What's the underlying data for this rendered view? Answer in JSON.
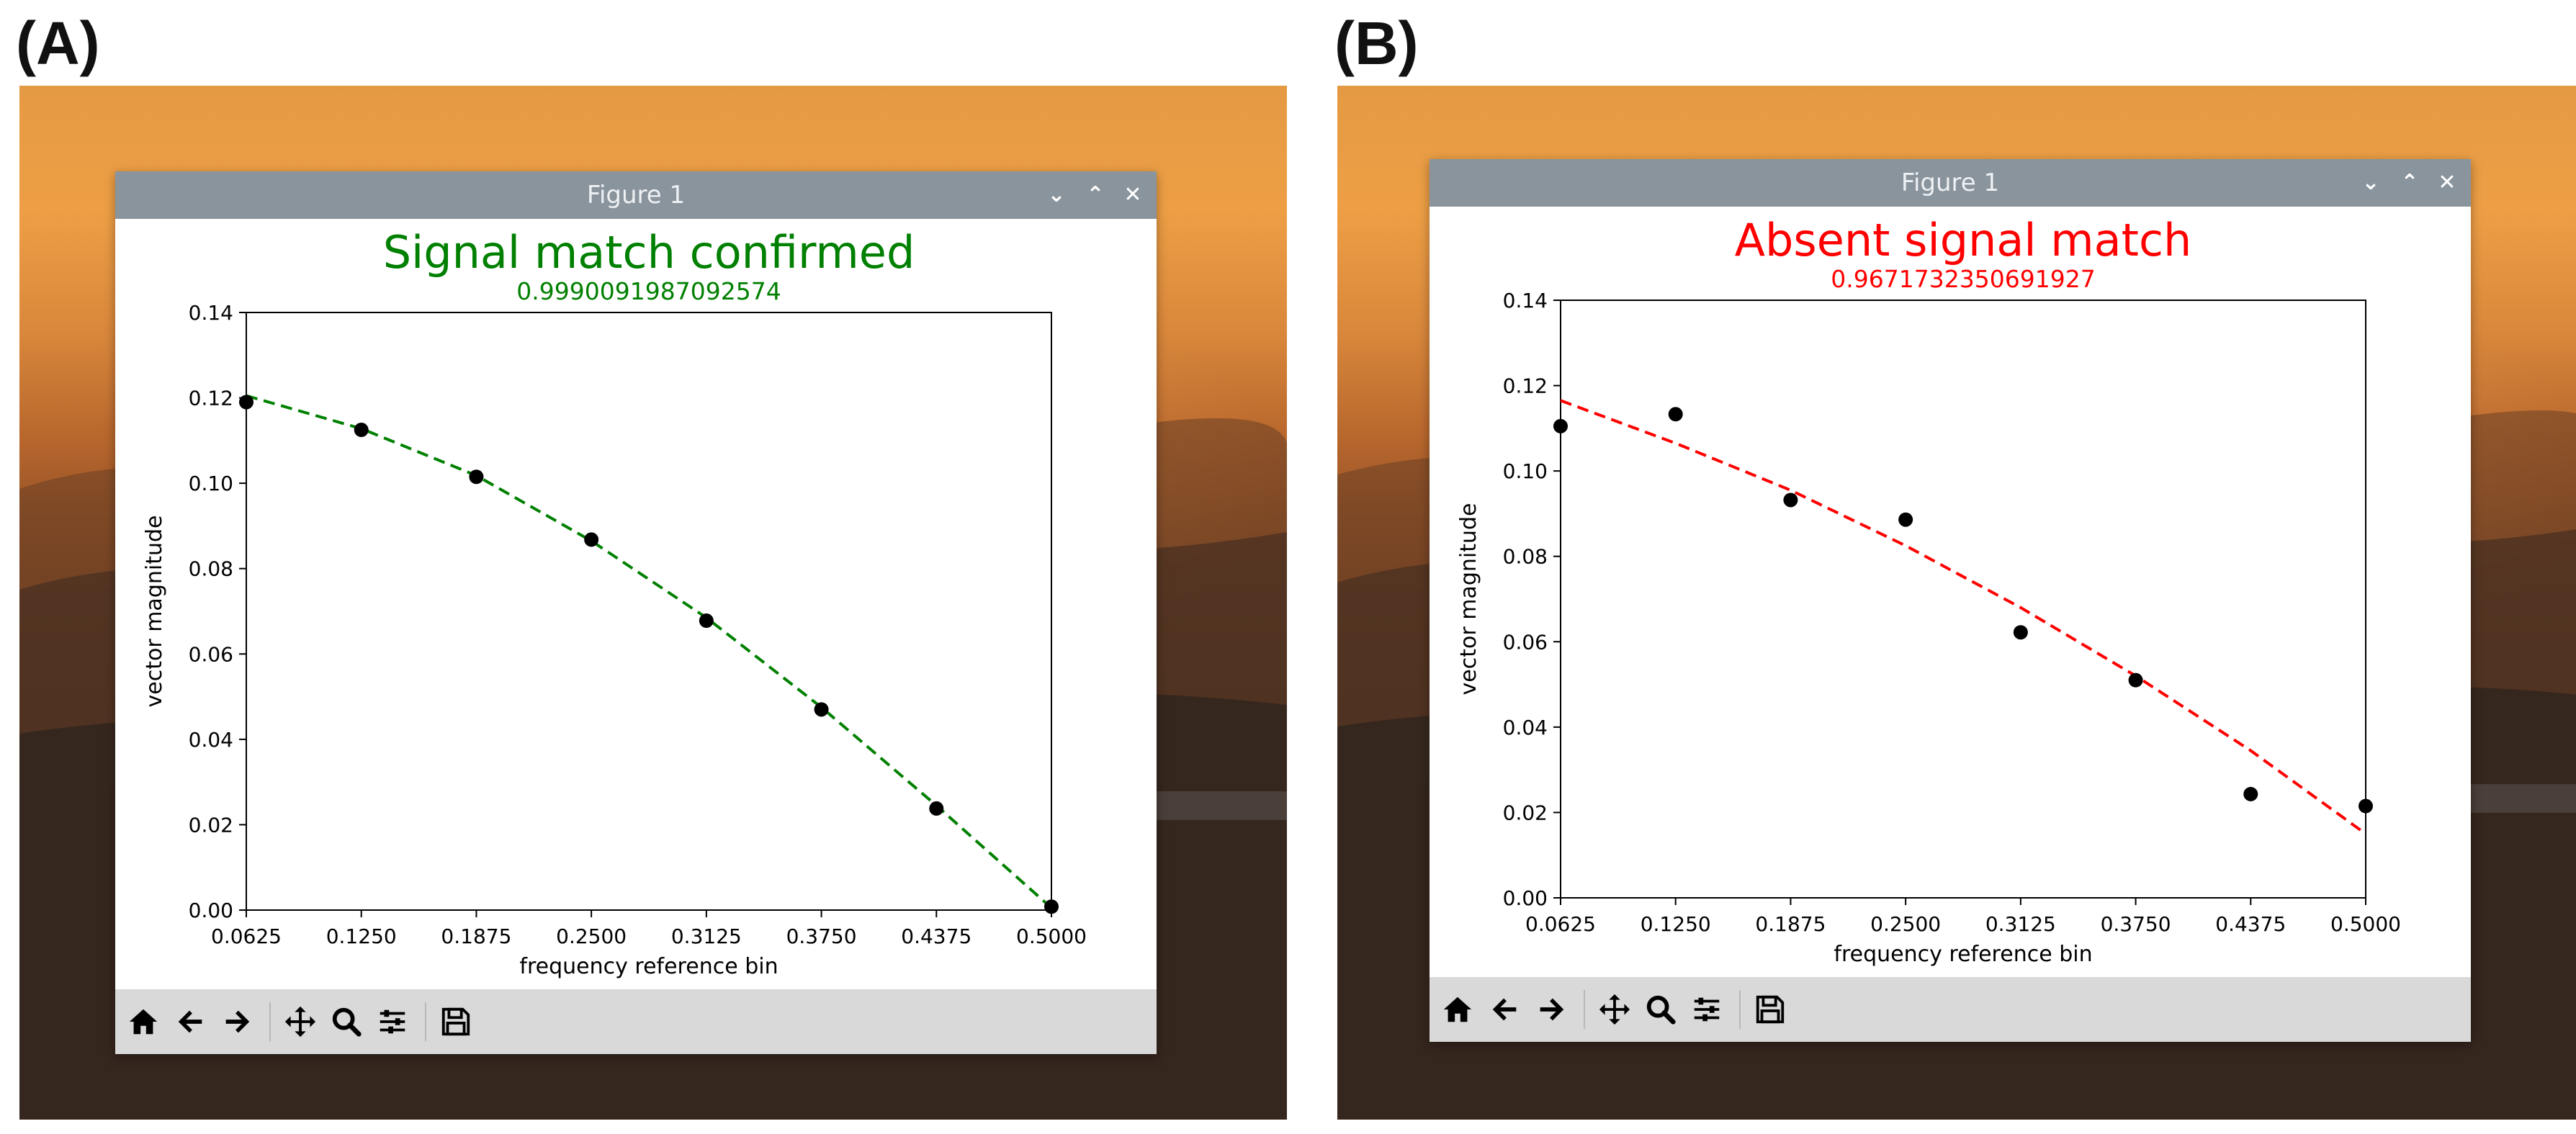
{
  "panels": [
    {
      "letter": "(A)",
      "window": {
        "title": "Figure 1",
        "controls": [
          "chevron-down",
          "chevron-up",
          "close"
        ]
      },
      "toolbar": [
        "home",
        "back",
        "forward",
        "pan",
        "zoom",
        "configure-subplots",
        "save"
      ],
      "chart_data": {
        "type": "scatter",
        "title": "Signal match confirmed",
        "subtitle": "0.9990091987092574",
        "title_color": "#008000",
        "fit_color": "#008000",
        "point_color": "#000000",
        "xlabel": "frequency reference bin",
        "ylabel": "vector magnitude",
        "xlim": [
          0.0625,
          0.5
        ],
        "ylim": [
          0.0,
          0.14
        ],
        "xticks": [
          "0.0625",
          "0.1250",
          "0.1875",
          "0.2500",
          "0.3125",
          "0.3750",
          "0.4375",
          "0.5000"
        ],
        "yticks": [
          "0.00",
          "0.02",
          "0.04",
          "0.06",
          "0.08",
          "0.10",
          "0.12",
          "0.14"
        ],
        "x": [
          0.0625,
          0.125,
          0.1875,
          0.25,
          0.3125,
          0.375,
          0.4375,
          0.5
        ],
        "points": [
          0.119,
          0.1125,
          0.1015,
          0.0868,
          0.0678,
          0.047,
          0.0238,
          0.0008
        ],
        "fit": [
          0.1205,
          0.1128,
          0.1018,
          0.0865,
          0.0685,
          0.0475,
          0.0245,
          0.0005
        ],
        "grid": false,
        "legend": "none"
      }
    },
    {
      "letter": "(B)",
      "window": {
        "title": "Figure 1",
        "controls": [
          "chevron-down",
          "chevron-up",
          "close"
        ]
      },
      "toolbar": [
        "home",
        "back",
        "forward",
        "pan",
        "zoom",
        "configure-subplots",
        "save"
      ],
      "chart_data": {
        "type": "scatter",
        "title": "Absent signal match",
        "subtitle": "0.9671732350691927",
        "title_color": "#ff0000",
        "fit_color": "#ff0000",
        "point_color": "#000000",
        "xlabel": "frequency reference bin",
        "ylabel": "vector magnitude",
        "xlim": [
          0.0625,
          0.5
        ],
        "ylim": [
          0.0,
          0.14
        ],
        "xticks": [
          "0.0625",
          "0.1250",
          "0.1875",
          "0.2500",
          "0.3125",
          "0.3750",
          "0.4375",
          "0.5000"
        ],
        "yticks": [
          "0.00",
          "0.02",
          "0.04",
          "0.06",
          "0.08",
          "0.10",
          "0.12",
          "0.14"
        ],
        "x": [
          0.0625,
          0.125,
          0.1875,
          0.25,
          0.3125,
          0.375,
          0.4375,
          0.5
        ],
        "points": [
          0.1105,
          0.1133,
          0.0932,
          0.0886,
          0.0622,
          0.051,
          0.0243,
          0.0215
        ],
        "fit": [
          0.1165,
          0.1065,
          0.0955,
          0.0825,
          0.068,
          0.052,
          0.0345,
          0.015
        ],
        "grid": false,
        "legend": "none"
      }
    }
  ]
}
